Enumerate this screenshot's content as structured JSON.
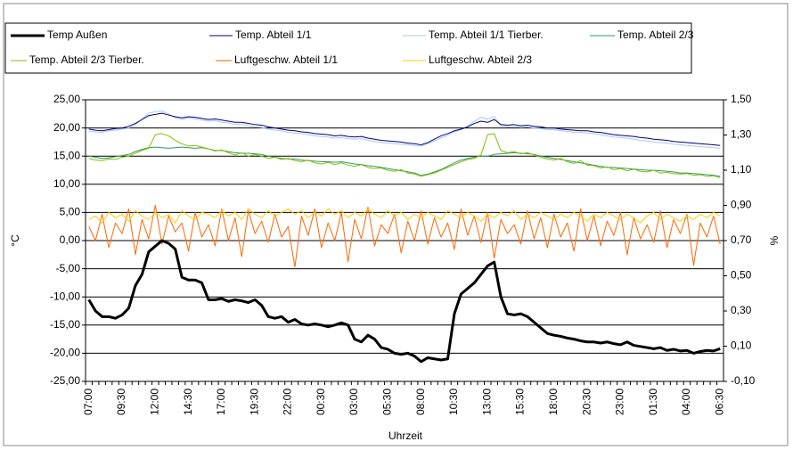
{
  "chart_data": {
    "type": "line",
    "legend": "top",
    "grid": true,
    "x_title": "Uhrzeit",
    "y_title": "°C",
    "y2_title": "%",
    "ylim": [
      -25,
      25
    ],
    "yticks": [
      {
        "value": -25,
        "label": "-25,00"
      },
      {
        "value": -20,
        "label": "-20,00"
      },
      {
        "value": -15,
        "label": "-15,00"
      },
      {
        "value": -10,
        "label": "-10,00"
      },
      {
        "value": -5,
        "label": "-5,00"
      },
      {
        "value": 0,
        "label": "0,00"
      },
      {
        "value": 5,
        "label": "5,00"
      },
      {
        "value": 10,
        "label": "10,00"
      },
      {
        "value": 15,
        "label": "15,00"
      },
      {
        "value": 20,
        "label": "20,00"
      },
      {
        "value": 25,
        "label": "25,00"
      }
    ],
    "y2lim": [
      -0.1,
      1.5
    ],
    "y2ticks": [
      {
        "value": -0.1,
        "label": "-0,10"
      },
      {
        "value": 0.1,
        "label": "0,10"
      },
      {
        "value": 0.3,
        "label": "0,30"
      },
      {
        "value": 0.5,
        "label": "0,50"
      },
      {
        "value": 0.7,
        "label": "0,70"
      },
      {
        "value": 0.9,
        "label": "0,90"
      },
      {
        "value": 1.1,
        "label": "1,10"
      },
      {
        "value": 1.3,
        "label": "1,30"
      },
      {
        "value": 1.5,
        "label": "1,50"
      }
    ],
    "categories": [
      "07:00",
      null,
      null,
      null,
      null,
      "09:30",
      null,
      null,
      null,
      null,
      "12:00",
      null,
      null,
      null,
      null,
      "14:30",
      null,
      null,
      null,
      null,
      "17:00",
      null,
      null,
      null,
      null,
      "19:30",
      null,
      null,
      null,
      null,
      "22:00",
      null,
      null,
      null,
      null,
      "00:30",
      null,
      null,
      null,
      null,
      "03:00",
      null,
      null,
      null,
      null,
      "05:30",
      null,
      null,
      null,
      null,
      "08:00",
      null,
      null,
      null,
      null,
      "10:30",
      null,
      null,
      null,
      null,
      "13:00",
      null,
      null,
      null,
      null,
      "15:30",
      null,
      null,
      null,
      null,
      "18:00",
      null,
      null,
      null,
      null,
      "20:30",
      null,
      null,
      null,
      null,
      "23:00",
      null,
      null,
      null,
      null,
      "01:30",
      null,
      null,
      null,
      null,
      "04:00",
      null,
      null,
      null,
      null,
      "06:30"
    ],
    "series": [
      {
        "name": "Temp. Abteil 1/1 Tierber.",
        "color": "#a6caf0",
        "line_width": 1,
        "values": [
          19.4,
          19.3,
          19.2,
          19.5,
          19.6,
          19.8,
          20.0,
          20.6,
          21.6,
          22.6,
          22.9,
          23.0,
          22.5,
          21.8,
          21.5,
          21.8,
          21.6,
          21.4,
          21.2,
          21.3,
          21.0,
          20.9,
          20.6,
          20.7,
          20.4,
          20.2,
          20.1,
          19.8,
          19.6,
          19.5,
          19.2,
          19.1,
          19.0,
          18.8,
          18.6,
          18.5,
          18.4,
          18.2,
          18.3,
          18.1,
          18.0,
          18.1,
          17.8,
          17.6,
          17.4,
          17.3,
          17.2,
          17.1,
          17.0,
          16.9,
          16.8,
          17.2,
          17.7,
          18.2,
          18.7,
          19.3,
          19.7,
          20.3,
          21.2,
          21.9,
          21.6,
          22.0,
          20.4,
          20.2,
          20.3,
          20.1,
          20.2,
          20.0,
          19.9,
          19.7,
          19.7,
          19.5,
          19.4,
          19.2,
          19.2,
          19.1,
          19.0,
          18.8,
          18.6,
          18.4,
          18.3,
          18.2,
          18.0,
          17.8,
          17.7,
          17.5,
          17.4,
          17.3,
          17.1,
          17.0,
          16.9,
          16.8,
          16.7,
          16.6,
          16.5,
          16.4
        ]
      },
      {
        "name": "Temp. Abteil 1/1",
        "color": "#000080",
        "line_width": 1,
        "values": [
          19.8,
          19.6,
          19.5,
          19.7,
          19.9,
          20.0,
          20.3,
          20.8,
          21.5,
          22.2,
          22.4,
          22.6,
          22.3,
          22.0,
          21.8,
          22.0,
          21.9,
          21.7,
          21.5,
          21.6,
          21.4,
          21.2,
          21.0,
          21.0,
          20.8,
          20.6,
          20.5,
          20.2,
          20.0,
          19.8,
          19.6,
          19.5,
          19.3,
          19.2,
          19.0,
          18.9,
          18.8,
          18.6,
          18.7,
          18.5,
          18.4,
          18.5,
          18.2,
          18.0,
          17.8,
          17.7,
          17.6,
          17.5,
          17.3,
          17.2,
          17.0,
          17.4,
          18.0,
          18.6,
          19.0,
          19.5,
          19.8,
          20.2,
          20.8,
          21.2,
          21.0,
          21.5,
          20.6,
          20.5,
          20.6,
          20.4,
          20.5,
          20.3,
          20.2,
          20.0,
          20.0,
          19.8,
          19.7,
          19.6,
          19.5,
          19.5,
          19.3,
          19.2,
          19.0,
          18.8,
          18.7,
          18.6,
          18.5,
          18.3,
          18.2,
          18.0,
          17.9,
          17.8,
          17.6,
          17.5,
          17.4,
          17.3,
          17.2,
          17.1,
          17.0,
          16.9
        ]
      },
      {
        "name": "Temp. Abteil 2/3",
        "color": "#339966",
        "line_width": 1,
        "values": [
          15.0,
          14.8,
          14.6,
          14.7,
          14.9,
          15.1,
          15.3,
          15.8,
          16.2,
          16.5,
          16.6,
          16.5,
          16.4,
          16.5,
          16.6,
          16.5,
          16.4,
          16.5,
          16.3,
          16.0,
          16.0,
          15.8,
          15.6,
          15.5,
          15.5,
          15.4,
          15.3,
          15.0,
          14.8,
          14.6,
          14.5,
          14.5,
          14.3,
          14.2,
          14.1,
          14.0,
          14.0,
          13.9,
          14.0,
          13.8,
          13.6,
          13.5,
          13.3,
          13.2,
          13.0,
          12.8,
          12.6,
          12.4,
          12.2,
          12.0,
          11.6,
          11.8,
          12.2,
          12.6,
          13.2,
          13.8,
          14.3,
          14.6,
          14.8,
          15.0,
          15.0,
          15.3,
          15.4,
          15.5,
          15.6,
          15.5,
          15.4,
          15.3,
          15.0,
          14.8,
          14.6,
          14.4,
          14.2,
          14.0,
          13.8,
          13.6,
          13.4,
          13.2,
          13.0,
          13.0,
          12.9,
          12.8,
          12.7,
          12.6,
          12.5,
          12.5,
          12.4,
          12.3,
          12.2,
          12.0,
          12.0,
          11.9,
          11.8,
          11.7,
          11.6,
          11.4
        ]
      },
      {
        "name": "Temp. Abteil 2/3 Tierber.",
        "color": "#80c000",
        "line_width": 1,
        "values": [
          14.6,
          14.3,
          14.2,
          14.5,
          14.4,
          14.8,
          15.0,
          15.5,
          16.0,
          16.4,
          18.8,
          19.0,
          18.6,
          17.8,
          17.2,
          16.8,
          16.9,
          16.6,
          16.3,
          15.9,
          16.1,
          15.6,
          15.2,
          15.6,
          15.0,
          15.3,
          15.0,
          14.6,
          14.8,
          14.4,
          14.6,
          14.2,
          14.0,
          14.3,
          13.8,
          13.6,
          13.9,
          13.5,
          13.8,
          13.4,
          13.2,
          13.5,
          13.0,
          12.8,
          12.9,
          12.5,
          12.3,
          12.6,
          12.0,
          11.8,
          11.4,
          11.7,
          12.0,
          12.5,
          13.0,
          13.5,
          14.0,
          14.4,
          14.6,
          15.2,
          18.8,
          19.0,
          16.0,
          15.6,
          15.8,
          15.4,
          15.6,
          15.2,
          14.8,
          14.5,
          14.3,
          14.6,
          14.0,
          13.7,
          14.2,
          13.4,
          13.3,
          12.9,
          13.1,
          12.6,
          12.8,
          12.4,
          12.7,
          12.3,
          12.2,
          12.5,
          12.0,
          12.1,
          11.9,
          11.8,
          11.9,
          11.6,
          11.7,
          11.4,
          11.5,
          11.2
        ]
      },
      {
        "name": "Luftgeschw. Abteil 1/1",
        "color": "#ff6600",
        "line_width": 1,
        "axis": "y2",
        "values": [
          0.78,
          0.7,
          0.85,
          0.66,
          0.8,
          0.74,
          0.88,
          0.62,
          0.82,
          0.71,
          0.9,
          0.68,
          0.84,
          0.75,
          0.8,
          0.64,
          0.86,
          0.72,
          0.79,
          0.67,
          0.88,
          0.7,
          0.83,
          0.61,
          0.87,
          0.74,
          0.81,
          0.69,
          0.85,
          0.72,
          0.78,
          0.55,
          0.84,
          0.73,
          0.88,
          0.66,
          0.8,
          0.7,
          0.86,
          0.58,
          0.82,
          0.71,
          0.89,
          0.67,
          0.79,
          0.74,
          0.85,
          0.63,
          0.81,
          0.7,
          0.87,
          0.68,
          0.83,
          0.72,
          0.8,
          0.65,
          0.88,
          0.73,
          0.84,
          0.69,
          0.86,
          0.6,
          0.82,
          0.74,
          0.79,
          0.68,
          0.87,
          0.71,
          0.83,
          0.66,
          0.85,
          0.72,
          0.8,
          0.64,
          0.88,
          0.7,
          0.84,
          0.67,
          0.81,
          0.73,
          0.86,
          0.62,
          0.83,
          0.71,
          0.79,
          0.69,
          0.87,
          0.66,
          0.82,
          0.74,
          0.85,
          0.56,
          0.8,
          0.72,
          0.84,
          0.68
        ]
      },
      {
        "name": "Luftgeschw. Abteil 2/3",
        "color": "#ffcc00",
        "line_width": 1,
        "axis": "y2",
        "values": [
          0.82,
          0.84,
          0.8,
          0.86,
          0.83,
          0.85,
          0.81,
          0.87,
          0.84,
          0.82,
          0.86,
          0.83,
          0.85,
          0.8,
          0.87,
          0.84,
          0.82,
          0.86,
          0.85,
          0.83,
          0.87,
          0.84,
          0.86,
          0.82,
          0.88,
          0.85,
          0.83,
          0.87,
          0.84,
          0.86,
          0.88,
          0.85,
          0.87,
          0.83,
          0.86,
          0.84,
          0.88,
          0.85,
          0.87,
          0.83,
          0.86,
          0.84,
          0.88,
          0.85,
          0.83,
          0.87,
          0.84,
          0.86,
          0.82,
          0.85,
          0.83,
          0.86,
          0.84,
          0.82,
          0.87,
          0.85,
          0.83,
          0.86,
          0.84,
          0.81,
          0.85,
          0.83,
          0.86,
          0.84,
          0.87,
          0.82,
          0.85,
          0.83,
          0.86,
          0.84,
          0.82,
          0.85,
          0.83,
          0.86,
          0.84,
          0.81,
          0.85,
          0.83,
          0.86,
          0.84,
          0.82,
          0.85,
          0.83,
          0.8,
          0.84,
          0.86,
          0.82,
          0.85,
          0.83,
          0.81,
          0.84,
          0.82,
          0.85,
          0.83,
          0.86,
          0.84
        ]
      },
      {
        "name": "Temp Außen",
        "color": "#000000",
        "line_width": 3,
        "values": [
          -10.5,
          -12.5,
          -13.5,
          -13.5,
          -13.8,
          -13.2,
          -12,
          -8,
          -6,
          -2,
          -1,
          0,
          -0.5,
          -1.5,
          -6.5,
          -7,
          -7,
          -7.5,
          -10.5,
          -10.5,
          -10.3,
          -10.8,
          -10.5,
          -10.7,
          -11,
          -10.5,
          -11.5,
          -13.5,
          -13.8,
          -13.5,
          -14.5,
          -14,
          -14.8,
          -15,
          -14.8,
          -15,
          -15.3,
          -15,
          -14.6,
          -15,
          -17.5,
          -18,
          -16.8,
          -17.5,
          -19,
          -19.3,
          -20,
          -20.2,
          -20,
          -20.5,
          -21.5,
          -20.8,
          -21,
          -21.2,
          -21,
          -13,
          -9.5,
          -8.5,
          -7.5,
          -6,
          -4.5,
          -3.8,
          -10,
          -13,
          -13.2,
          -13,
          -13.5,
          -14.5,
          -15.5,
          -16.5,
          -16.8,
          -17,
          -17.3,
          -17.5,
          -17.8,
          -18,
          -18,
          -18.2,
          -18,
          -18.3,
          -18.5,
          -18,
          -18.6,
          -18.8,
          -19,
          -19.2,
          -19,
          -19.5,
          -19.3,
          -19.6,
          -19.5,
          -20,
          -19.7,
          -19.5,
          -19.6,
          -19.2
        ]
      }
    ],
    "legend_order": [
      6,
      1,
      0,
      2,
      3,
      4,
      5
    ]
  }
}
